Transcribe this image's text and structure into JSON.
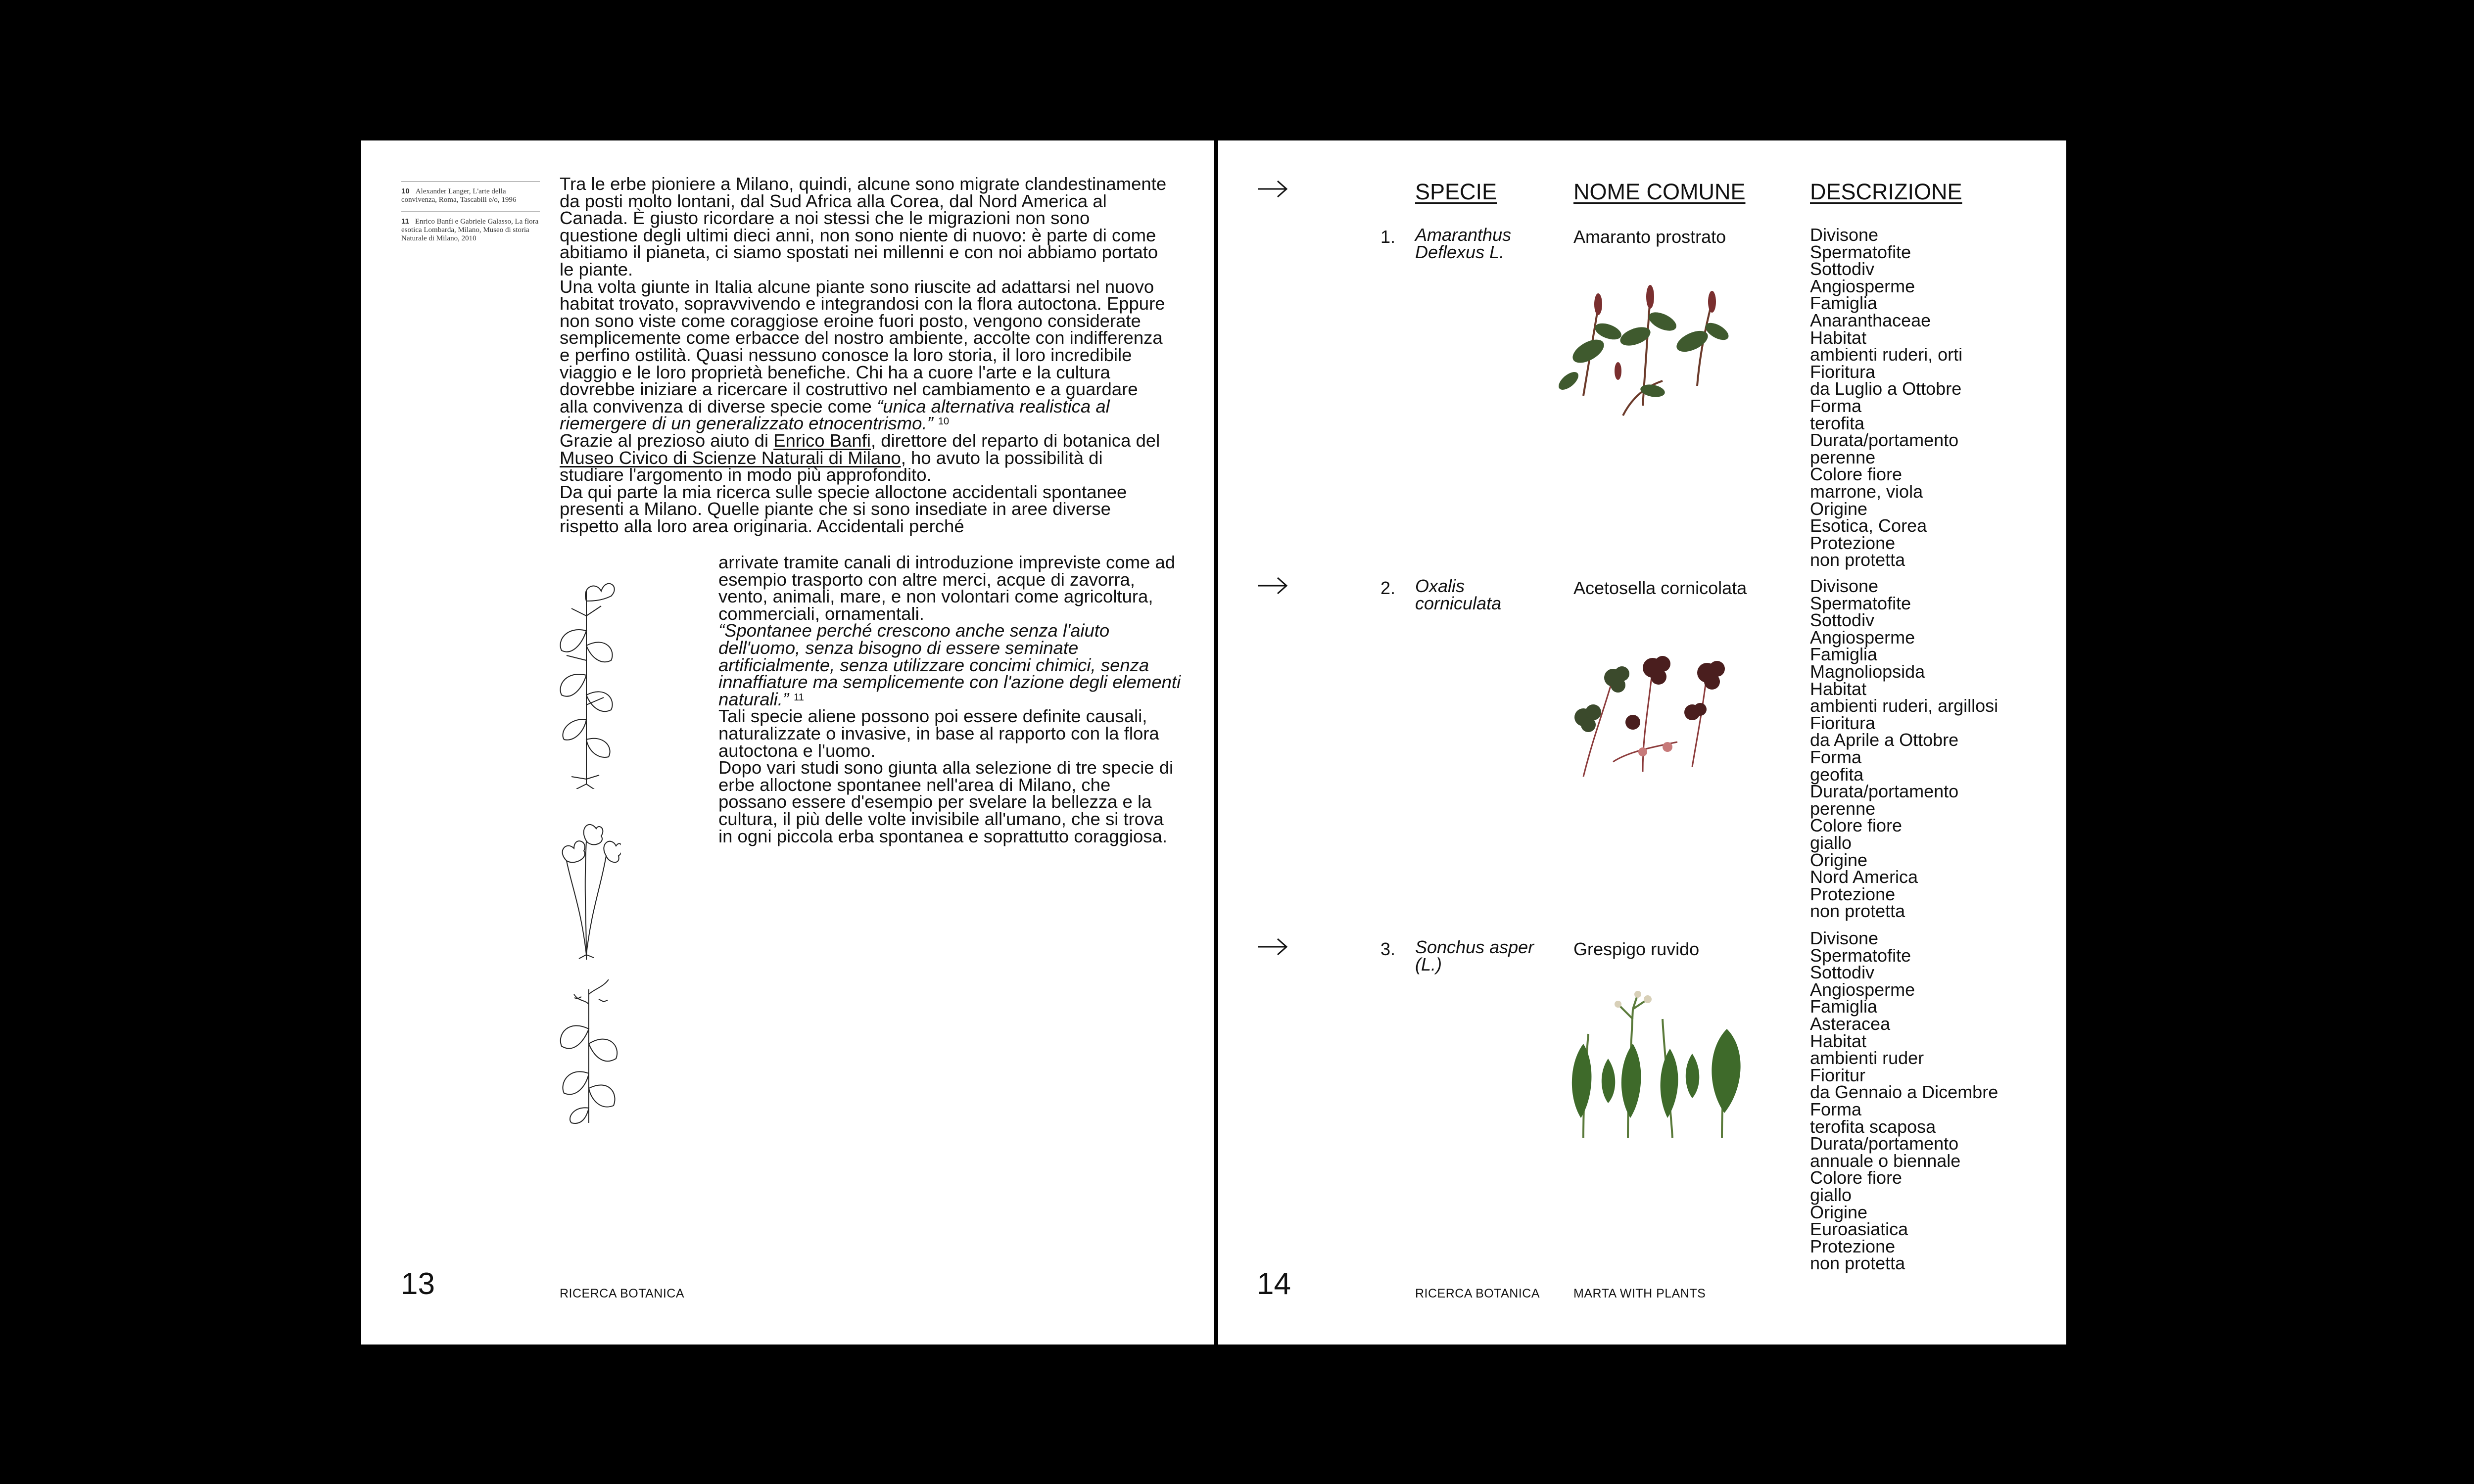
{
  "left_page": {
    "footnotes": [
      {
        "num": "10",
        "text": "Alexander Langer, L'arte della convivenza, Roma, Tascabili e/o, 1996"
      },
      {
        "num": "11",
        "text": "Enrico Banfi e Gabriele Galasso, La flora esotica Lombarda, Milano, Museo di storia Naturale di Milano, 2010"
      }
    ],
    "paragraphs": {
      "p1": "Tra le erbe pioniere a Milano, quindi, alcune sono migrate clandestinamente da posti molto lontani, dal Sud Africa alla Corea, dal Nord America al Canada. È giusto ricordare a noi stessi che le migrazioni non sono questione degli ultimi dieci anni, non sono niente di nuovo: è parte di come abitiamo il pianeta, ci siamo spostati nei millenni e con noi abbiamo portato le piante.",
      "p2a": "Una volta giunte in Italia alcune piante sono riuscite ad adattarsi nel nuovo habitat trovato, sopravvivendo e integrandosi con la flora autoctona. Eppure non sono viste come coraggiose eroine fuori posto, vengono considerate semplicemente come erbacce del nostro ambiente, accolte con indifferenza e perfino ostilità. Quasi nessuno conosce la loro storia, il loro incredibile viaggio e le loro proprietà benefiche. Chi ha a cuore l'arte e la cultura dovrebbe iniziare a ricercare il costruttivo nel cambiamento e a guardare alla convivenza di diverse specie come ",
      "p2_quote": "“unica alternativa realistica al riemergere di un generalizzato etnocentrismo.”",
      "p2_ref": "10",
      "p3a": "Grazie al prezioso aiuto di ",
      "p3_link1": "Enrico Banfi",
      "p3b": ", direttore del reparto di botanica del ",
      "p3_link2": "Museo Civico di Scienze Naturali di Milano",
      "p3c": ", ho avuto la possibilità di studiare l'argomento in modo più approfondito.",
      "p4": "Da qui parte la mia ricerca sulle specie alloctone accidentali spontanee presenti a Milano. Quelle piante che si sono insediate in aree diverse rispetto alla loro area originaria. Accidentali perché",
      "p5": "arrivate tramite canali di introduzione impreviste come ad esempio trasporto con altre merci, acque di zavorra, vento, animali, mare, e non volontari come agricoltura, commerciali, ornamentali.",
      "p5_quote": "“Spontanee perché crescono anche senza l'aiuto dell'uomo, senza bisogno di essere seminate artificialmente, senza utilizzare concimi chimici, senza innaffiature ma semplicemente con l'azione degli elementi naturali.”",
      "p5_ref": "11",
      "p6": "Tali specie aliene possono poi essere definite causali, naturalizzate o invasive, in base al rapporto con la flora autoctona e l'uomo.",
      "p7": "Dopo vari studi sono giunta alla selezione di tre specie di erbe alloctone spontanee nell'area di Milano, che possano essere d'esempio per svelare la bellezza e la cultura, il più delle volte invisibile all'umano, che si trova in ogni piccola erba spontanea e soprattutto coraggiosa."
    },
    "page_number": "13",
    "footer_label": "RICERCA BOTANICA"
  },
  "right_page": {
    "headers": {
      "species": "SPECIE",
      "common": "NOME COMUNE",
      "description": "DESCRIZIONE"
    },
    "species": [
      {
        "num": "1.",
        "name": "Amaranthus Deflexus L.",
        "common": "Amaranto prostrato",
        "desc": [
          "Divisone",
          "Spermatofite",
          "Sottodiv",
          "Angiosperme",
          "Famiglia",
          "Anaranthaceae",
          "Habitat",
          "ambienti ruderi, orti",
          "Fioritura",
          "da Luglio a Ottobre",
          "Forma",
          "terofita",
          "Durata/portamento",
          "perenne",
          "Colore fiore",
          "marrone, viola",
          "Origine",
          "Esotica, Corea",
          "Protezione",
          "non protetta"
        ]
      },
      {
        "num": "2.",
        "name": "Oxalis corniculata",
        "common": "Acetosella cornicolata",
        "desc": [
          "Divisone",
          "Spermatofite",
          "Sottodiv",
          "Angiosperme",
          "Famiglia",
          "Magnoliopsida",
          "Habitat",
          "ambienti ruderi, argillosi",
          "Fioritura",
          "da Aprile a Ottobre",
          "Forma",
          "geofita",
          "Durata/portamento",
          "perenne",
          "Colore fiore",
          "giallo",
          "Origine",
          "Nord America",
          "Protezione",
          "non protetta"
        ]
      },
      {
        "num": "3.",
        "name": "Sonchus asper (L.)",
        "common": "Grespigo ruvido",
        "desc": [
          "Divisone",
          "Spermatofite",
          "Sottodiv",
          "Angiosperme",
          "Famiglia",
          "Asteracea",
          "Habitat",
          "ambienti ruder",
          "Fioritur",
          "da Gennaio a Dicembre",
          "Forma",
          "terofita scaposa",
          "Durata/portamento",
          "annuale o biennale",
          "Colore fiore",
          "giallo",
          "Origine",
          "Euroasiatica",
          "Protezione",
          "non protetta"
        ]
      }
    ],
    "page_number": "14",
    "footer_label_1": "RICERCA BOTANICA",
    "footer_label_2": "MARTA WITH PLANTS"
  },
  "colors": {
    "background": "#000000",
    "page": "#ffffff",
    "text": "#111111"
  }
}
